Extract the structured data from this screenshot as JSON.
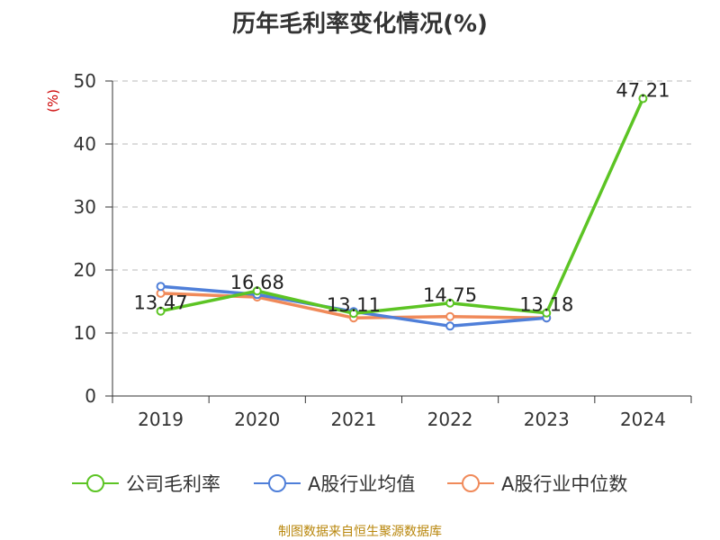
{
  "title": "历年毛利率变化情况(%)",
  "source": "制图数据来自恒生聚源数据库",
  "chart_data": {
    "type": "line",
    "title": "历年毛利率变化情况(%)",
    "ylabel": "(%)",
    "xlabel": "",
    "categories": [
      "2019",
      "2020",
      "2021",
      "2022",
      "2023",
      "2024"
    ],
    "ylim": [
      0,
      50
    ],
    "yticks": [
      0,
      10,
      20,
      30,
      40,
      50
    ],
    "grid": "horizontal dashed",
    "legend_position": "bottom",
    "series": [
      {
        "name": "公司毛利率",
        "color": "#5cc424",
        "values": [
          13.47,
          16.68,
          13.11,
          14.75,
          13.18,
          47.21
        ],
        "labels": [
          "13.47",
          "16.68",
          "13.11",
          "14.75",
          "13.18",
          "47.21"
        ]
      },
      {
        "name": "A股行业均值",
        "color": "#4f7fd9",
        "values": [
          17.4,
          16.1,
          13.4,
          11.1,
          12.4,
          null
        ]
      },
      {
        "name": "A股行业中位数",
        "color": "#f08a5a",
        "values": [
          16.3,
          15.7,
          12.4,
          12.6,
          12.4,
          null
        ]
      }
    ]
  }
}
